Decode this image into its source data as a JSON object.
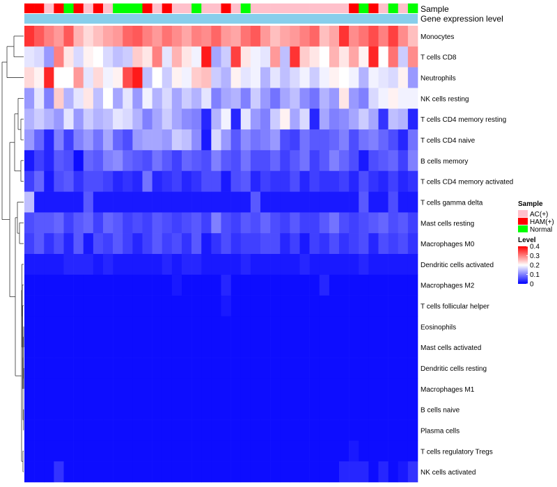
{
  "chart_data": {
    "type": "heatmap",
    "title": "",
    "annotation_tracks": [
      {
        "name": "Sample",
        "label": "Sample"
      },
      {
        "name": "Gene expression level",
        "label": "Gene expression level",
        "color": "#87CEEB"
      }
    ],
    "sample_groups": [
      {
        "label": "AC(+)",
        "color": "#FFC0CB"
      },
      {
        "label": "HAM(+)",
        "color": "#FF0000"
      },
      {
        "label": "Normal",
        "color": "#00FF00"
      }
    ],
    "sample_annotation": [
      1,
      1,
      0,
      1,
      2,
      1,
      0,
      1,
      0,
      2,
      2,
      2,
      1,
      0,
      1,
      0,
      0,
      2,
      0,
      0,
      1,
      0,
      2,
      0,
      0,
      0,
      0,
      0,
      0,
      0,
      0,
      0,
      0,
      1,
      2,
      1,
      0,
      2,
      0,
      2
    ],
    "legend": {
      "sample_title": "Sample",
      "level_title": "Level",
      "level_ticks": [
        0.4,
        0.3,
        0.2,
        0.1,
        0
      ],
      "level_range": [
        0,
        0.4
      ],
      "colors": {
        "low": "#0000FF",
        "mid": "#FFFFFF",
        "high": "#FF0000",
        "mid_value": 0.2
      }
    },
    "rows": [
      {
        "label": "Monocytes",
        "values": [
          0.36,
          0.33,
          0.3,
          0.28,
          0.33,
          0.26,
          0.23,
          0.25,
          0.27,
          0.28,
          0.32,
          0.33,
          0.3,
          0.28,
          0.31,
          0.29,
          0.27,
          0.3,
          0.29,
          0.32,
          0.28,
          0.27,
          0.31,
          0.33,
          0.28,
          0.25,
          0.27,
          0.28,
          0.3,
          0.32,
          0.25,
          0.27,
          0.36,
          0.29,
          0.31,
          0.34,
          0.3,
          0.35,
          0.29,
          0.25
        ]
      },
      {
        "label": "T cells CD8",
        "values": [
          0.18,
          0.17,
          0.12,
          0.3,
          0.22,
          0.17,
          0.21,
          0.2,
          0.17,
          0.15,
          0.16,
          0.24,
          0.22,
          0.3,
          0.18,
          0.26,
          0.22,
          0.19,
          0.38,
          0.13,
          0.16,
          0.35,
          0.22,
          0.19,
          0.18,
          0.28,
          0.15,
          0.36,
          0.24,
          0.22,
          0.2,
          0.26,
          0.22,
          0.27,
          0.21,
          0.37,
          0.2,
          0.31,
          0.16,
          0.29
        ]
      },
      {
        "label": "Neutrophils",
        "values": [
          0.23,
          0.21,
          0.37,
          0.2,
          0.2,
          0.28,
          0.18,
          0.23,
          0.19,
          0.21,
          0.34,
          0.38,
          0.15,
          0.2,
          0.16,
          0.21,
          0.19,
          0.24,
          0.25,
          0.16,
          0.14,
          0.21,
          0.18,
          0.19,
          0.14,
          0.18,
          0.15,
          0.17,
          0.19,
          0.16,
          0.19,
          0.21,
          0.2,
          0.19,
          0.14,
          0.19,
          0.18,
          0.17,
          0.21,
          0.12
        ]
      },
      {
        "label": "NK cells resting",
        "values": [
          0.12,
          0.18,
          0.1,
          0.24,
          0.14,
          0.18,
          0.22,
          0.15,
          0.2,
          0.13,
          0.18,
          0.12,
          0.19,
          0.14,
          0.17,
          0.13,
          0.16,
          0.14,
          0.18,
          0.1,
          0.13,
          0.14,
          0.1,
          0.16,
          0.12,
          0.09,
          0.13,
          0.15,
          0.11,
          0.09,
          0.14,
          0.12,
          0.22,
          0.12,
          0.1,
          0.17,
          0.19,
          0.21,
          0.19,
          0.19
        ]
      },
      {
        "label": "T cells CD4 memory resting",
        "values": [
          0.14,
          0.16,
          0.14,
          0.12,
          0.18,
          0.12,
          0.16,
          0.14,
          0.15,
          0.18,
          0.17,
          0.14,
          0.1,
          0.13,
          0.16,
          0.13,
          0.11,
          0.1,
          0.03,
          0.14,
          0.19,
          0.03,
          0.18,
          0.12,
          0.1,
          0.16,
          0.21,
          0.13,
          0.17,
          0.03,
          0.13,
          0.1,
          0.11,
          0.13,
          0.16,
          0.13,
          0.04,
          0.15,
          0.14,
          0.03
        ]
      },
      {
        "label": "T cells CD4 naive",
        "values": [
          0.12,
          0.08,
          0.03,
          0.1,
          0.05,
          0.1,
          0.12,
          0.09,
          0.13,
          0.08,
          0.06,
          0.12,
          0.13,
          0.13,
          0.12,
          0.16,
          0.15,
          0.11,
          0.02,
          0.17,
          0.12,
          0.07,
          0.11,
          0.09,
          0.1,
          0.12,
          0.06,
          0.05,
          0.09,
          0.07,
          0.07,
          0.08,
          0.1,
          0.06,
          0.09,
          0.1,
          0.08,
          0.06,
          0.03,
          0.09
        ]
      },
      {
        "label": "B cells memory",
        "values": [
          0.02,
          0.05,
          0.03,
          0.07,
          0.06,
          0.01,
          0.08,
          0.07,
          0.1,
          0.11,
          0.08,
          0.07,
          0.06,
          0.09,
          0.07,
          0.05,
          0.08,
          0.07,
          0.06,
          0.1,
          0.07,
          0.06,
          0.09,
          0.06,
          0.06,
          0.08,
          0.05,
          0.07,
          0.09,
          0.05,
          0.07,
          0.1,
          0.08,
          0.06,
          0.02,
          0.06,
          0.07,
          0.08,
          0.05,
          0.1
        ]
      },
      {
        "label": "T cells CD4 memory activated",
        "values": [
          0.05,
          0.08,
          0.02,
          0.06,
          0.07,
          0.04,
          0.06,
          0.06,
          0.05,
          0.03,
          0.04,
          0.03,
          0.09,
          0.03,
          0.04,
          0.05,
          0.03,
          0.04,
          0.06,
          0.06,
          0.02,
          0.06,
          0.07,
          0.03,
          0.05,
          0.04,
          0.04,
          0.06,
          0.03,
          0.05,
          0.04,
          0.04,
          0.05,
          0.03,
          0.06,
          0.04,
          0.03,
          0.05,
          0.03,
          0.04
        ]
      },
      {
        "label": "T cells gamma delta",
        "values": [
          0.15,
          0.02,
          0.02,
          0.02,
          0.02,
          0.02,
          0.07,
          0.02,
          0.02,
          0.02,
          0.02,
          0.02,
          0.02,
          0.02,
          0.02,
          0.02,
          0.02,
          0.02,
          0.02,
          0.02,
          0.02,
          0.02,
          0.02,
          0.07,
          0.02,
          0.02,
          0.02,
          0.02,
          0.02,
          0.02,
          0.02,
          0.02,
          0.02,
          0.02,
          0.07,
          0.02,
          0.02,
          0.06,
          0.02,
          0.02
        ]
      },
      {
        "label": "Mast cells resting",
        "values": [
          0.06,
          0.07,
          0.07,
          0.08,
          0.05,
          0.07,
          0.08,
          0.05,
          0.08,
          0.07,
          0.05,
          0.06,
          0.05,
          0.07,
          0.06,
          0.05,
          0.06,
          0.07,
          0.05,
          0.1,
          0.06,
          0.05,
          0.07,
          0.06,
          0.08,
          0.06,
          0.05,
          0.07,
          0.05,
          0.05,
          0.07,
          0.09,
          0.06,
          0.05,
          0.06,
          0.07,
          0.08,
          0.06,
          0.07,
          0.05
        ]
      },
      {
        "label": "Macrophages M0",
        "values": [
          0.05,
          0.07,
          0.04,
          0.06,
          0.03,
          0.07,
          0.02,
          0.06,
          0.05,
          0.07,
          0.05,
          0.03,
          0.05,
          0.07,
          0.05,
          0.06,
          0.04,
          0.07,
          0.02,
          0.04,
          0.06,
          0.04,
          0.05,
          0.05,
          0.06,
          0.06,
          0.03,
          0.05,
          0.02,
          0.05,
          0.04,
          0.06,
          0.04,
          0.05,
          0.06,
          0.03,
          0.06,
          0.05,
          0.06,
          0.04
        ]
      },
      {
        "label": "Dendritic cells activated",
        "values": [
          0.02,
          0.02,
          0.02,
          0.02,
          0.03,
          0.03,
          0.03,
          0.02,
          0.03,
          0.02,
          0.02,
          0.02,
          0.02,
          0.02,
          0.03,
          0.02,
          0.03,
          0.03,
          0.02,
          0.02,
          0.02,
          0.02,
          0.03,
          0.02,
          0.02,
          0.02,
          0.02,
          0.02,
          0.03,
          0.02,
          0.02,
          0.02,
          0.02,
          0.02,
          0.03,
          0.02,
          0.02,
          0.02,
          0.02,
          0.02
        ]
      },
      {
        "label": "Macrophages M2",
        "values": [
          0.01,
          0.01,
          0.01,
          0.01,
          0.01,
          0.01,
          0.01,
          0.01,
          0.01,
          0.01,
          0.01,
          0.01,
          0.01,
          0.01,
          0.01,
          0.02,
          0.01,
          0.01,
          0.01,
          0.01,
          0.03,
          0.01,
          0.01,
          0.01,
          0.01,
          0.01,
          0.01,
          0.01,
          0.01,
          0.01,
          0.03,
          0.01,
          0.01,
          0.01,
          0.01,
          0.01,
          0.01,
          0.01,
          0.01,
          0.01
        ]
      },
      {
        "label": "T cells follicular helper",
        "values": [
          0.01,
          0.01,
          0.01,
          0.01,
          0.01,
          0.01,
          0.01,
          0.01,
          0.01,
          0.01,
          0.01,
          0.01,
          0.01,
          0.01,
          0.01,
          0.01,
          0.01,
          0.01,
          0.01,
          0.01,
          0.02,
          0.01,
          0.01,
          0.01,
          0.01,
          0.01,
          0.01,
          0.01,
          0.01,
          0.01,
          0.01,
          0.01,
          0.01,
          0.01,
          0.01,
          0.01,
          0.01,
          0.01,
          0.01,
          0.01
        ]
      },
      {
        "label": "Eosinophils",
        "values": [
          0.01,
          0.01,
          0.01,
          0.01,
          0.01,
          0.01,
          0.01,
          0.01,
          0.01,
          0.01,
          0.01,
          0.01,
          0.01,
          0.01,
          0.01,
          0.01,
          0.01,
          0.01,
          0.01,
          0.01,
          0.01,
          0.01,
          0.01,
          0.01,
          0.01,
          0.01,
          0.01,
          0.01,
          0.01,
          0.01,
          0.01,
          0.01,
          0.01,
          0.01,
          0.01,
          0.01,
          0.01,
          0.01,
          0.01,
          0.01
        ]
      },
      {
        "label": "Mast cells activated",
        "values": [
          0.01,
          0.01,
          0.01,
          0.01,
          0.01,
          0.01,
          0.01,
          0.01,
          0.01,
          0.01,
          0.01,
          0.01,
          0.01,
          0.01,
          0.01,
          0.01,
          0.01,
          0.01,
          0.01,
          0.01,
          0.01,
          0.01,
          0.01,
          0.01,
          0.01,
          0.01,
          0.01,
          0.01,
          0.01,
          0.01,
          0.01,
          0.01,
          0.01,
          0.01,
          0.01,
          0.01,
          0.01,
          0.01,
          0.01,
          0.01
        ]
      },
      {
        "label": "Dendritic cells resting",
        "values": [
          0.01,
          0.01,
          0.01,
          0.01,
          0.01,
          0.01,
          0.01,
          0.01,
          0.01,
          0.01,
          0.01,
          0.01,
          0.01,
          0.01,
          0.01,
          0.01,
          0.01,
          0.01,
          0.01,
          0.01,
          0.01,
          0.01,
          0.01,
          0.01,
          0.01,
          0.01,
          0.01,
          0.01,
          0.01,
          0.01,
          0.01,
          0.01,
          0.01,
          0.01,
          0.01,
          0.01,
          0.01,
          0.01,
          0.01,
          0.01
        ]
      },
      {
        "label": "Macrophages M1",
        "values": [
          0.01,
          0.01,
          0.01,
          0.01,
          0.01,
          0.01,
          0.01,
          0.01,
          0.01,
          0.01,
          0.01,
          0.01,
          0.01,
          0.01,
          0.01,
          0.01,
          0.01,
          0.01,
          0.01,
          0.01,
          0.01,
          0.01,
          0.01,
          0.01,
          0.01,
          0.01,
          0.01,
          0.01,
          0.01,
          0.01,
          0.01,
          0.01,
          0.01,
          0.01,
          0.01,
          0.01,
          0.01,
          0.01,
          0.01,
          0.01
        ]
      },
      {
        "label": "B cells naive",
        "values": [
          0.01,
          0.01,
          0.01,
          0.01,
          0.01,
          0.01,
          0.01,
          0.01,
          0.01,
          0.01,
          0.01,
          0.01,
          0.01,
          0.01,
          0.01,
          0.01,
          0.01,
          0.01,
          0.01,
          0.01,
          0.01,
          0.01,
          0.01,
          0.01,
          0.01,
          0.01,
          0.01,
          0.01,
          0.01,
          0.01,
          0.01,
          0.01,
          0.01,
          0.01,
          0.01,
          0.01,
          0.01,
          0.01,
          0.01,
          0.01
        ]
      },
      {
        "label": "Plasma cells",
        "values": [
          0.01,
          0.01,
          0.01,
          0.01,
          0.01,
          0.01,
          0.01,
          0.01,
          0.01,
          0.01,
          0.01,
          0.01,
          0.01,
          0.01,
          0.01,
          0.01,
          0.01,
          0.01,
          0.01,
          0.01,
          0.01,
          0.01,
          0.01,
          0.01,
          0.01,
          0.01,
          0.01,
          0.01,
          0.01,
          0.01,
          0.01,
          0.01,
          0.01,
          0.01,
          0.01,
          0.01,
          0.01,
          0.01,
          0.01,
          0.01
        ]
      },
      {
        "label": "T cells regulatory  Tregs",
        "values": [
          0.01,
          0.01,
          0.01,
          0.01,
          0.01,
          0.01,
          0.01,
          0.01,
          0.01,
          0.01,
          0.01,
          0.01,
          0.01,
          0.01,
          0.01,
          0.01,
          0.01,
          0.01,
          0.01,
          0.01,
          0.01,
          0.01,
          0.01,
          0.01,
          0.01,
          0.01,
          0.01,
          0.01,
          0.01,
          0.01,
          0.01,
          0.01,
          0.01,
          0.02,
          0.01,
          0.01,
          0.01,
          0.01,
          0.01,
          0.01
        ]
      },
      {
        "label": "NK cells activated",
        "values": [
          0.01,
          0.01,
          0.01,
          0.04,
          0.01,
          0.01,
          0.01,
          0.01,
          0.01,
          0.01,
          0.01,
          0.01,
          0.01,
          0.01,
          0.01,
          0.01,
          0.01,
          0.01,
          0.01,
          0.01,
          0.01,
          0.01,
          0.01,
          0.01,
          0.01,
          0.01,
          0.01,
          0.01,
          0.01,
          0.01,
          0.01,
          0.01,
          0.03,
          0.03,
          0.03,
          0.01,
          0.03,
          0.01,
          0.02,
          0.04
        ]
      }
    ]
  }
}
